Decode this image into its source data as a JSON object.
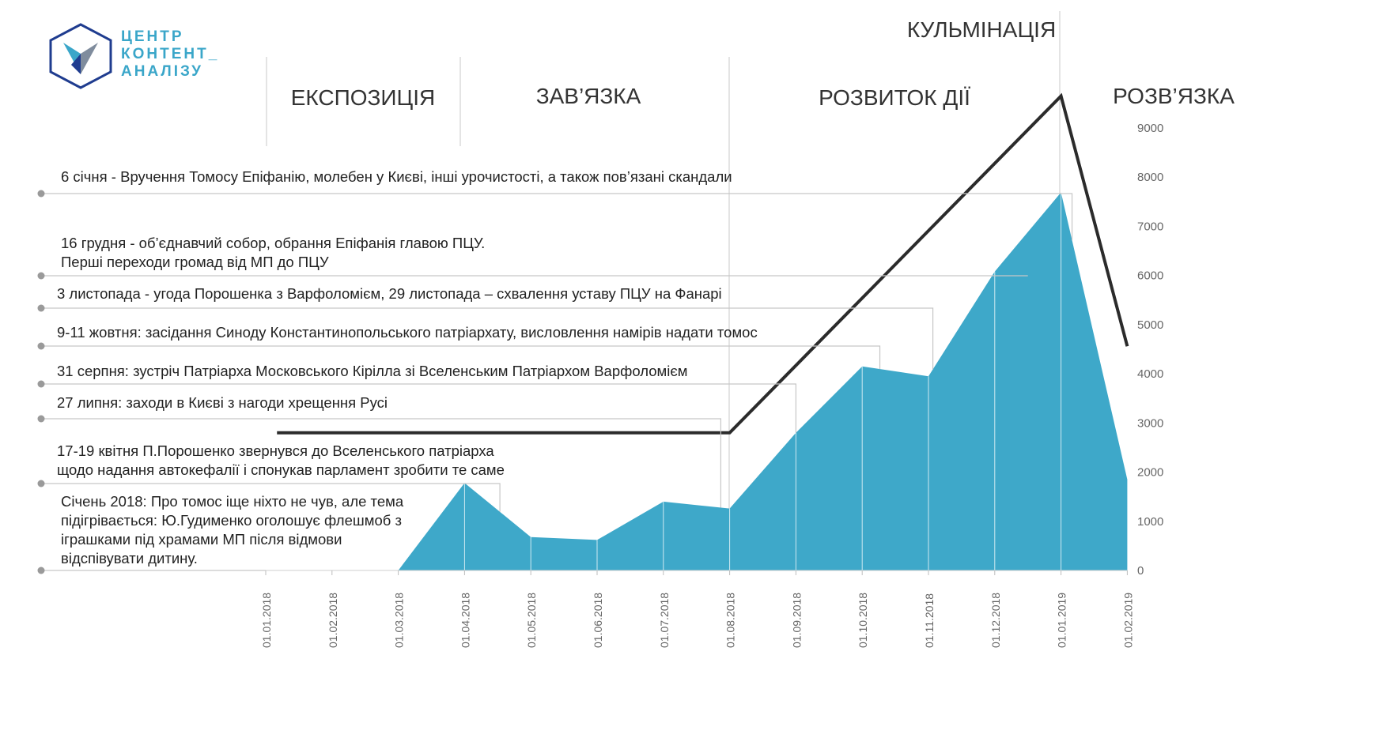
{
  "logo": {
    "lines": [
      "ЦЕНТР",
      "КОНТЕНТ_",
      "АНАЛІЗУ"
    ],
    "colors": {
      "outline": "#1f3c8f",
      "primary": "#3aa6c9",
      "secondary": "#7f8c9d"
    }
  },
  "phases": [
    "ЕКСПОЗИЦІЯ",
    "ЗАВ’ЯЗКА",
    "РОЗВИТОК ДІЇ",
    "КУЛЬМІНАЦІЯ",
    "РОЗВ’ЯЗКА"
  ],
  "events": [
    {
      "date": "06.01.2019",
      "text": [
        "6 січня - Вручення Томосу Епіфанію, молебен у Києві, інші урочистості, а також пов’язані скандали"
      ]
    },
    {
      "date": "16.12.2018",
      "text": [
        "16 грудня - об’єднавчий собор, обрання Епіфанія главою ПЦУ.",
        "Перші переходи громад від МП до ПЦУ"
      ]
    },
    {
      "date": "03.11.2018",
      "text": [
        "3 листопада - угода Порошенка з Варфоломієм, 29 листопада – схвалення уставу ПЦУ на Фанарі"
      ]
    },
    {
      "date": "09.10.2018",
      "text": [
        "9-11 жовтня: засідання Синоду Константинопольського патріархату, висловлення намірів надати томос"
      ]
    },
    {
      "date": "31.08.2018",
      "text": [
        "31 серпня: зустріч Патріарха Московського Кірілла зі Вселенським Патріархом Варфоломієм"
      ]
    },
    {
      "date": "27.07.2018",
      "text": [
        "27 липня: заходи в Києві з нагоди хрещення Русі"
      ]
    },
    {
      "date": "17.04.2018",
      "text": [
        "17-19 квітня П.Порошенко звернувся до Вселенського патріарха",
        "щодо надання автокефалії і спонукав парламент зробити те саме"
      ]
    },
    {
      "date": "01.2018",
      "text": [
        "Січень 2018: Про томос іще ніхто не чув, але тема",
        "підігрівається: Ю.Гудименко оголошує флешмоб з",
        "іграшками під храмами МП після відмови",
        "відспівувати дитину."
      ]
    }
  ],
  "chart_data": {
    "type": "area",
    "categories": [
      "01.01.2018",
      "01.02.2018",
      "01.03.2018",
      "01.04.2018",
      "01.05.2018",
      "01.06.2018",
      "01.07.2018",
      "01.08.2018",
      "01.09.2018",
      "01.10.2018",
      "01.11.2018",
      "01.12.2018",
      "01.01.2019",
      "01.02.2019"
    ],
    "series": [
      {
        "values": [
          null,
          null,
          0,
          1780,
          680,
          620,
          1400,
          1260,
          2800,
          4150,
          3950,
          6080,
          7690,
          1850
        ],
        "color": "#3ea8c9"
      }
    ],
    "plot_curve": {
      "description": "",
      "color": "#2b2b2b"
    },
    "ylim": [
      0,
      9000
    ],
    "yticks": [
      0,
      1000,
      2000,
      3000,
      4000,
      5000,
      6000,
      7000,
      8000,
      9000
    ],
    "grid": false
  }
}
